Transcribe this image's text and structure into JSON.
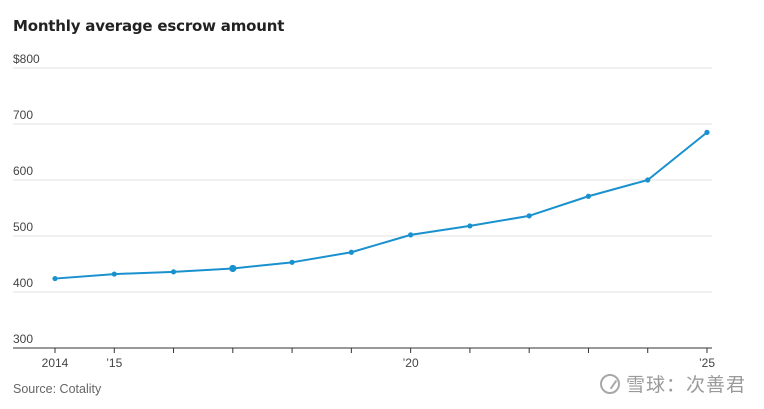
{
  "title": "Monthly average escrow amount",
  "source": "Source: Cotality",
  "watermark": "雪球：次善君",
  "colors": {
    "line": "#1a91cf",
    "grid": "#e2e2e2",
    "axis": "#333333"
  },
  "chart_data": {
    "type": "line",
    "title": "Monthly average escrow amount",
    "xlabel": "",
    "ylabel": "",
    "x": [
      2014,
      2015,
      2016,
      2017,
      2018,
      2019,
      2020,
      2021,
      2022,
      2023,
      2024,
      2025
    ],
    "series": [
      {
        "values": [
          424,
          432,
          436,
          442,
          453,
          471,
          502,
          518,
          536,
          571,
          600,
          685
        ]
      }
    ],
    "highlight_index": 3,
    "ylim": [
      300,
      800
    ],
    "yticks": [
      {
        "value": 800,
        "label": "$800"
      },
      {
        "value": 700,
        "label": "700"
      },
      {
        "value": 600,
        "label": "600"
      },
      {
        "value": 500,
        "label": "500"
      },
      {
        "value": 400,
        "label": "400"
      },
      {
        "value": 300,
        "label": "300"
      }
    ],
    "xlim": [
      2014,
      2025
    ],
    "xticks": [
      2014,
      2015,
      2016,
      2017,
      2018,
      2019,
      2020,
      2021,
      2022,
      2023,
      2024,
      2025
    ],
    "xtick_labels": [
      {
        "value": 2014,
        "label": "2014"
      },
      {
        "value": 2015,
        "label": "’15"
      },
      {
        "value": 2020,
        "label": "’20"
      },
      {
        "value": 2025,
        "label": "’25"
      }
    ],
    "grid": true,
    "legend": "none"
  }
}
